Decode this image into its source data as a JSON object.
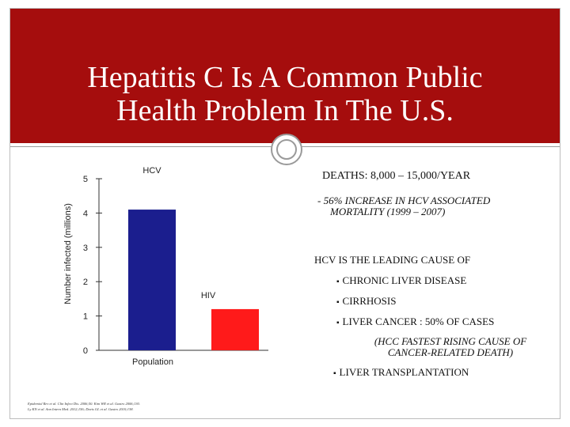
{
  "slide": {
    "title_lines": [
      "Hepatitis C Is A Common Public",
      "Health Problem In The U.S."
    ]
  },
  "chart_data": {
    "type": "bar",
    "categories": [
      "HCV",
      "HIV"
    ],
    "values": [
      4.1,
      1.2
    ],
    "colors": [
      "#1b1e8e",
      "#ff1a1a"
    ],
    "ylabel": "Number infected (millions)",
    "xlabel": "Population",
    "ylim": [
      0,
      5
    ],
    "yticks": [
      "5",
      "4",
      "3",
      "2",
      "1",
      "0"
    ],
    "grid": false
  },
  "right_panel": {
    "deaths": "DEATHS: 8,000 – 15,000/YEAR",
    "increase_lines": [
      "- 56% INCREASE IN HCV ASSOCIATED",
      "MORTALITY (1999 – 2007)"
    ],
    "leading": "HCV IS THE LEADING CAUSE OF",
    "bullets": [
      "CHRONIC LIVER DISEASE",
      "CIRRHOSIS",
      "LIVER CANCER : 50% OF CASES"
    ],
    "hcc_lines": [
      "(HCC FASTEST RISING CAUSE OF",
      "CANCER-RELATED DEATH)"
    ],
    "transplant": "LIVER TRANSPLANTATION"
  },
  "references": {
    "line1": "Epidemiol Rev et al. Clin Infect Dis. 2006;50. Kim WR et al. Gastro 2006;130.",
    "line2": "Ly KN et al. Ann Intern Med. 2012;156; Davis GL et al. Gastro 2010;138."
  }
}
